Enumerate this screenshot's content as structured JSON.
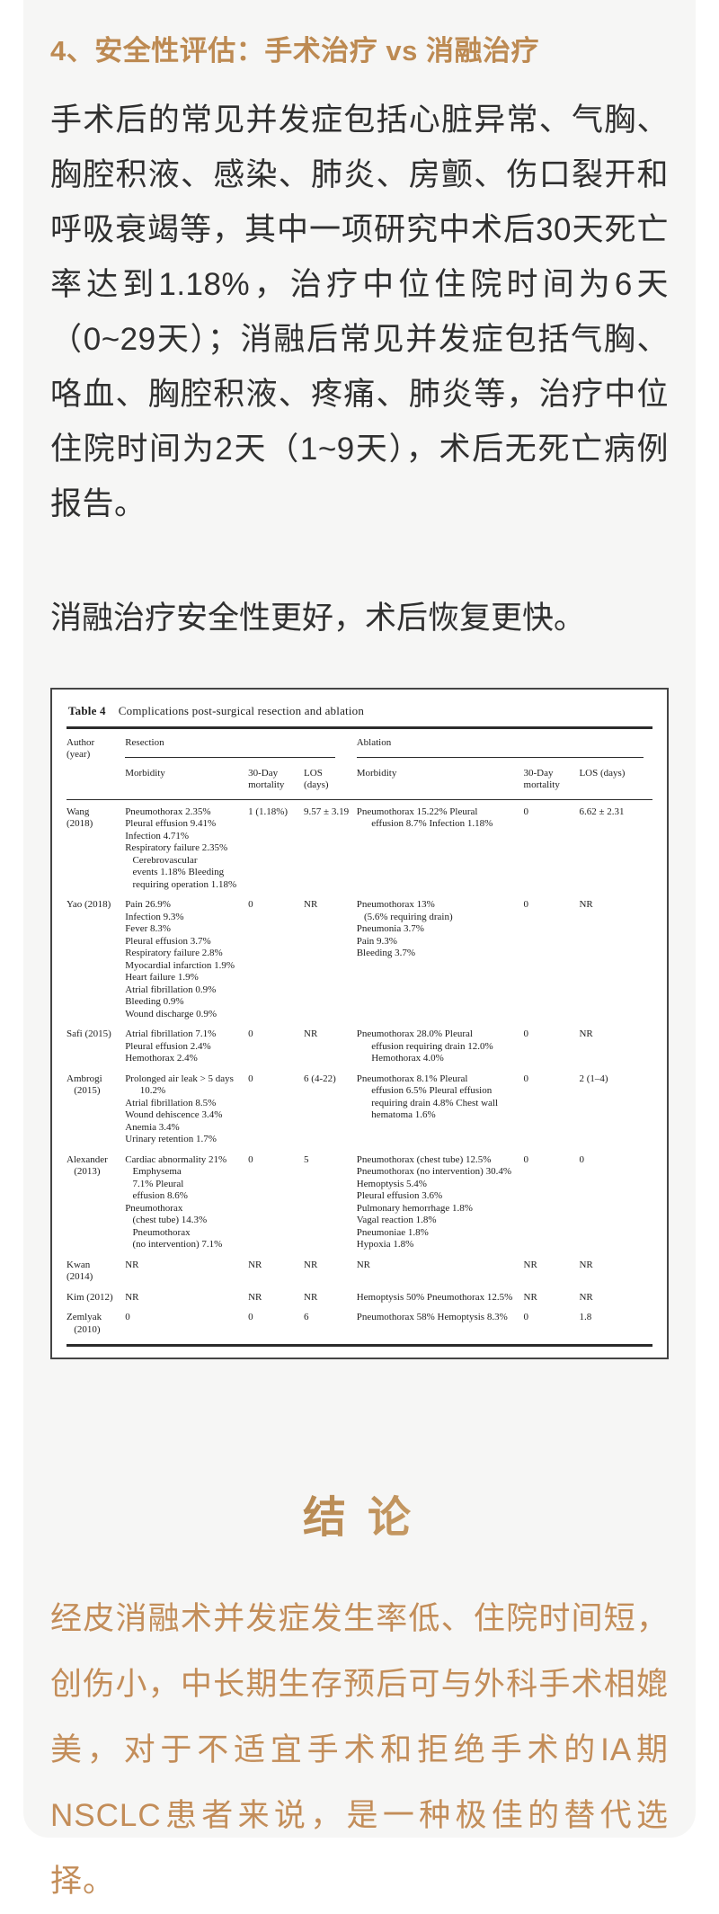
{
  "colors": {
    "card_bg": "#f6f6f5",
    "page_bg": "#ffffff",
    "heading_gold": "#bd8a52",
    "conclusion_gold": "#c38d59",
    "conclusion_gradient_dark": "#9e6f35",
    "conclusion_gradient_light": "#e0bd8f",
    "body_text": "#303030",
    "figure_border": "#454545"
  },
  "article": {
    "section_heading": "4、安全性评估：手术治疗 vs 消融治疗",
    "paragraph1": "手术后的常见并发症包括心脏异常、气胸、胸腔积液、感染、肺炎、房颤、伤口裂开和呼吸衰竭等，其中一项研究中术后30天死亡率达到1.18%，治疗中位住院时间为6天（0~29天）；消融后常见并发症包括气胸、咯血、胸腔积液、疼痛、肺炎等，治疗中位住院时间为2天（1~9天），术后无死亡病例报告。",
    "paragraph2": "消融治疗安全性更好，术后恢复更快。",
    "conclusion_heading": "结 论",
    "conclusion_text": "经皮消融术并发症发生率低、住院时间短，创伤小，中长期生存预后可与外科手术相媲美，对于不适宜手术和拒绝手术的IA期NSCLC患者来说，是一种极佳的替代选择。"
  },
  "table_figure": {
    "caption_label": "Table 4",
    "caption_text": "Complications post-surgical resection and ablation",
    "col_author": "Author (year)",
    "group_resection": "Resection",
    "group_ablation": "Ablation",
    "sub_morbidity": "Morbidity",
    "sub_mortality": "30-Day\nmortality",
    "sub_los": "LOS (days)",
    "rows": [
      {
        "author": "Wang (2018)",
        "res_morbidity": "Pneumothorax 2.35%\nPleural effusion 9.41%\nInfection 4.71%\nRespiratory failure 2.35%\n   Cerebrovascular\n   events 1.18% Bleeding\n   requiring operation 1.18%",
        "res_mortality": "1 (1.18%)",
        "res_los": "9.57 ± 3.19",
        "abl_morbidity": "Pneumothorax 15.22% Pleural\n      effusion 8.7% Infection 1.18%",
        "abl_mortality": "0",
        "abl_los": "6.62 ± 2.31"
      },
      {
        "author": "Yao (2018)",
        "res_morbidity": "Pain 26.9%\nInfection 9.3%\nFever 8.3%\nPleural effusion 3.7%\nRespiratory failure 2.8%\nMyocardial infarction 1.9%\nHeart failure 1.9%\nAtrial fibrillation 0.9%\nBleeding 0.9%\nWound discharge 0.9%",
        "res_mortality": "0",
        "res_los": "NR",
        "abl_morbidity": "Pneumothorax 13%\n   (5.6% requiring drain)\nPneumonia 3.7%\nPain 9.3%\nBleeding 3.7%",
        "abl_mortality": "0",
        "abl_los": "NR"
      },
      {
        "author": "Safi (2015)",
        "res_morbidity": "Atrial fibrillation 7.1%\nPleural effusion 2.4%\nHemothorax 2.4%",
        "res_mortality": "0",
        "res_los": "NR",
        "abl_morbidity": "Pneumothorax 28.0% Pleural\n      effusion requiring drain 12.0%\n      Hemothorax 4.0%",
        "abl_mortality": "0",
        "abl_los": "NR"
      },
      {
        "author": "Ambrogi\n   (2015)",
        "res_morbidity": "Prolonged air leak > 5 days\n      10.2%\nAtrial fibrillation 8.5%\nWound dehiscence 3.4%\nAnemia 3.4%\nUrinary retention 1.7%",
        "res_mortality": "0",
        "res_los": "6 (4-22)",
        "abl_morbidity": "Pneumothorax 8.1% Pleural\n      effusion 6.5% Pleural effusion\n      requiring drain 4.8% Chest wall\n      hematoma 1.6%",
        "abl_mortality": "0",
        "abl_los": "2 (1–4)"
      },
      {
        "author": "Alexander\n   (2013)",
        "res_morbidity": "Cardiac abnormality 21%\n   Emphysema\n   7.1% Pleural\n   effusion 8.6% Pneumothorax\n   (chest tube) 14.3%\n   Pneumothorax\n   (no intervention) 7.1%",
        "res_mortality": "0",
        "res_los": "5",
        "abl_morbidity": "Pneumothorax (chest tube) 12.5%\nPneumothorax (no intervention) 30.4%\nHemoptysis 5.4%\nPleural effusion 3.6%\nPulmonary hemorrhage 1.8%\nVagal reaction 1.8%\nPneumoniae 1.8%\nHypoxia 1.8%",
        "abl_mortality": "0",
        "abl_los": "0"
      },
      {
        "author": "Kwan (2014)",
        "res_morbidity": "NR",
        "res_mortality": "NR",
        "res_los": "NR",
        "abl_morbidity": "NR",
        "abl_mortality": "NR",
        "abl_los": "NR"
      },
      {
        "author": "Kim (2012)",
        "res_morbidity": "NR",
        "res_mortality": "NR",
        "res_los": "NR",
        "abl_morbidity": "Hemoptysis 50% Pneumothorax 12.5%",
        "abl_mortality": "NR",
        "abl_los": "NR"
      },
      {
        "author": "Zemlyak\n   (2010)",
        "res_morbidity": "0",
        "res_mortality": "0",
        "res_los": "6",
        "abl_morbidity": "Pneumothorax 58% Hemoptysis 8.3%",
        "abl_mortality": "0",
        "abl_los": "1.8"
      }
    ]
  }
}
